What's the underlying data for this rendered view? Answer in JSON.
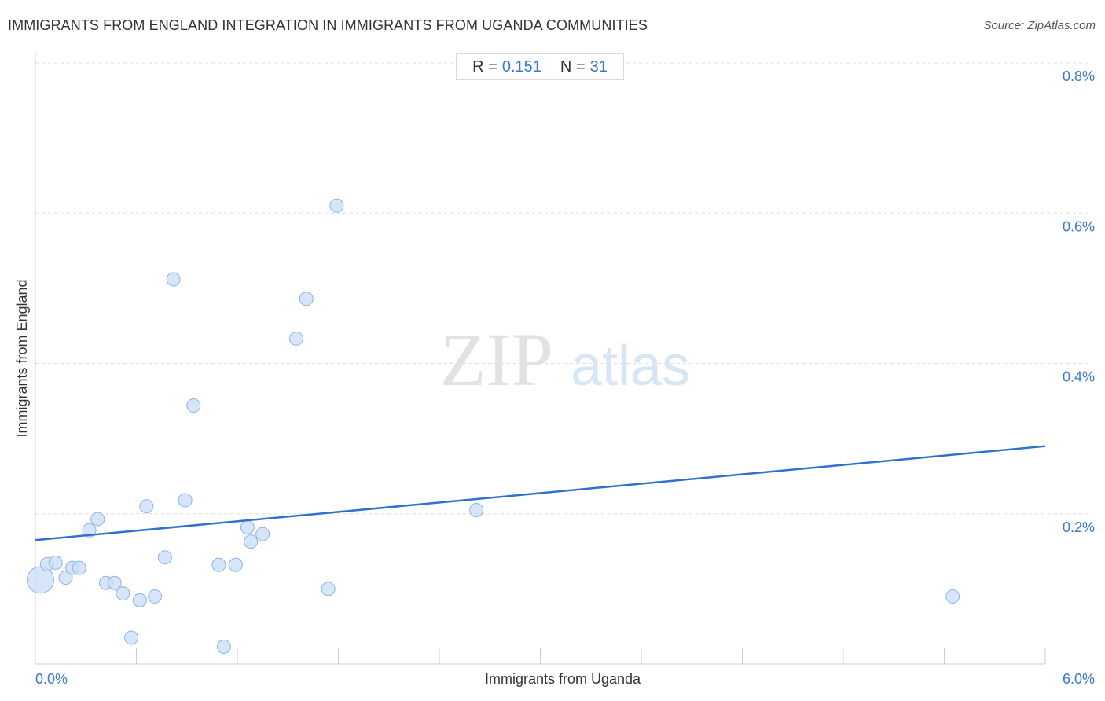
{
  "header": {
    "title": "IMMIGRANTS FROM ENGLAND INTEGRATION IN IMMIGRANTS FROM UGANDA COMMUNITIES",
    "source": "Source: ZipAtlas.com"
  },
  "stats": {
    "r_label": "R =",
    "r_value": "0.151",
    "n_label": "N =",
    "n_value": "31"
  },
  "watermark": {
    "zip": "ZIP",
    "atlas": "atlas"
  },
  "colors": {
    "accent": "#3a78c9",
    "point_fill": "#c9dcf5",
    "point_stroke": "#8db3e6",
    "trend": "#2f72cc",
    "grid": "#dddddd"
  },
  "chart_data": {
    "type": "scatter",
    "title": "IMMIGRANTS FROM ENGLAND INTEGRATION IN IMMIGRANTS FROM UGANDA COMMUNITIES",
    "xlabel": "Immigrants from Uganda",
    "ylabel": "Immigrants from England",
    "xlim": [
      0,
      6.0
    ],
    "ylim": [
      0,
      0.8
    ],
    "x_ticks": [
      {
        "value": 0,
        "label": "0.0%"
      },
      {
        "value": 6.0,
        "label": "6.0%"
      }
    ],
    "y_ticks": [
      {
        "value": 0.2,
        "label": "0.2%"
      },
      {
        "value": 0.4,
        "label": "0.4%"
      },
      {
        "value": 0.6,
        "label": "0.6%"
      },
      {
        "value": 0.8,
        "label": "0.8%"
      }
    ],
    "grid": true,
    "trendline": {
      "x": [
        0,
        6.0
      ],
      "y": [
        0.165,
        0.29
      ]
    },
    "points": [
      {
        "x": 0.03,
        "y": 0.112,
        "size": "large"
      },
      {
        "x": 0.07,
        "y": 0.133
      },
      {
        "x": 0.12,
        "y": 0.135
      },
      {
        "x": 0.18,
        "y": 0.115
      },
      {
        "x": 0.22,
        "y": 0.128
      },
      {
        "x": 0.26,
        "y": 0.128
      },
      {
        "x": 0.32,
        "y": 0.178
      },
      {
        "x": 0.37,
        "y": 0.193
      },
      {
        "x": 0.42,
        "y": 0.108
      },
      {
        "x": 0.47,
        "y": 0.108
      },
      {
        "x": 0.52,
        "y": 0.094
      },
      {
        "x": 0.57,
        "y": 0.035
      },
      {
        "x": 0.62,
        "y": 0.085
      },
      {
        "x": 0.66,
        "y": 0.21
      },
      {
        "x": 0.71,
        "y": 0.09
      },
      {
        "x": 0.77,
        "y": 0.142
      },
      {
        "x": 0.82,
        "y": 0.512
      },
      {
        "x": 0.89,
        "y": 0.218
      },
      {
        "x": 0.94,
        "y": 0.344
      },
      {
        "x": 1.09,
        "y": 0.132
      },
      {
        "x": 1.12,
        "y": 0.023
      },
      {
        "x": 1.19,
        "y": 0.132
      },
      {
        "x": 1.26,
        "y": 0.182
      },
      {
        "x": 1.28,
        "y": 0.163
      },
      {
        "x": 1.35,
        "y": 0.173
      },
      {
        "x": 1.55,
        "y": 0.433
      },
      {
        "x": 1.61,
        "y": 0.486
      },
      {
        "x": 1.74,
        "y": 0.1
      },
      {
        "x": 1.79,
        "y": 0.61
      },
      {
        "x": 2.62,
        "y": 0.205
      },
      {
        "x": 5.45,
        "y": 0.09
      }
    ]
  }
}
